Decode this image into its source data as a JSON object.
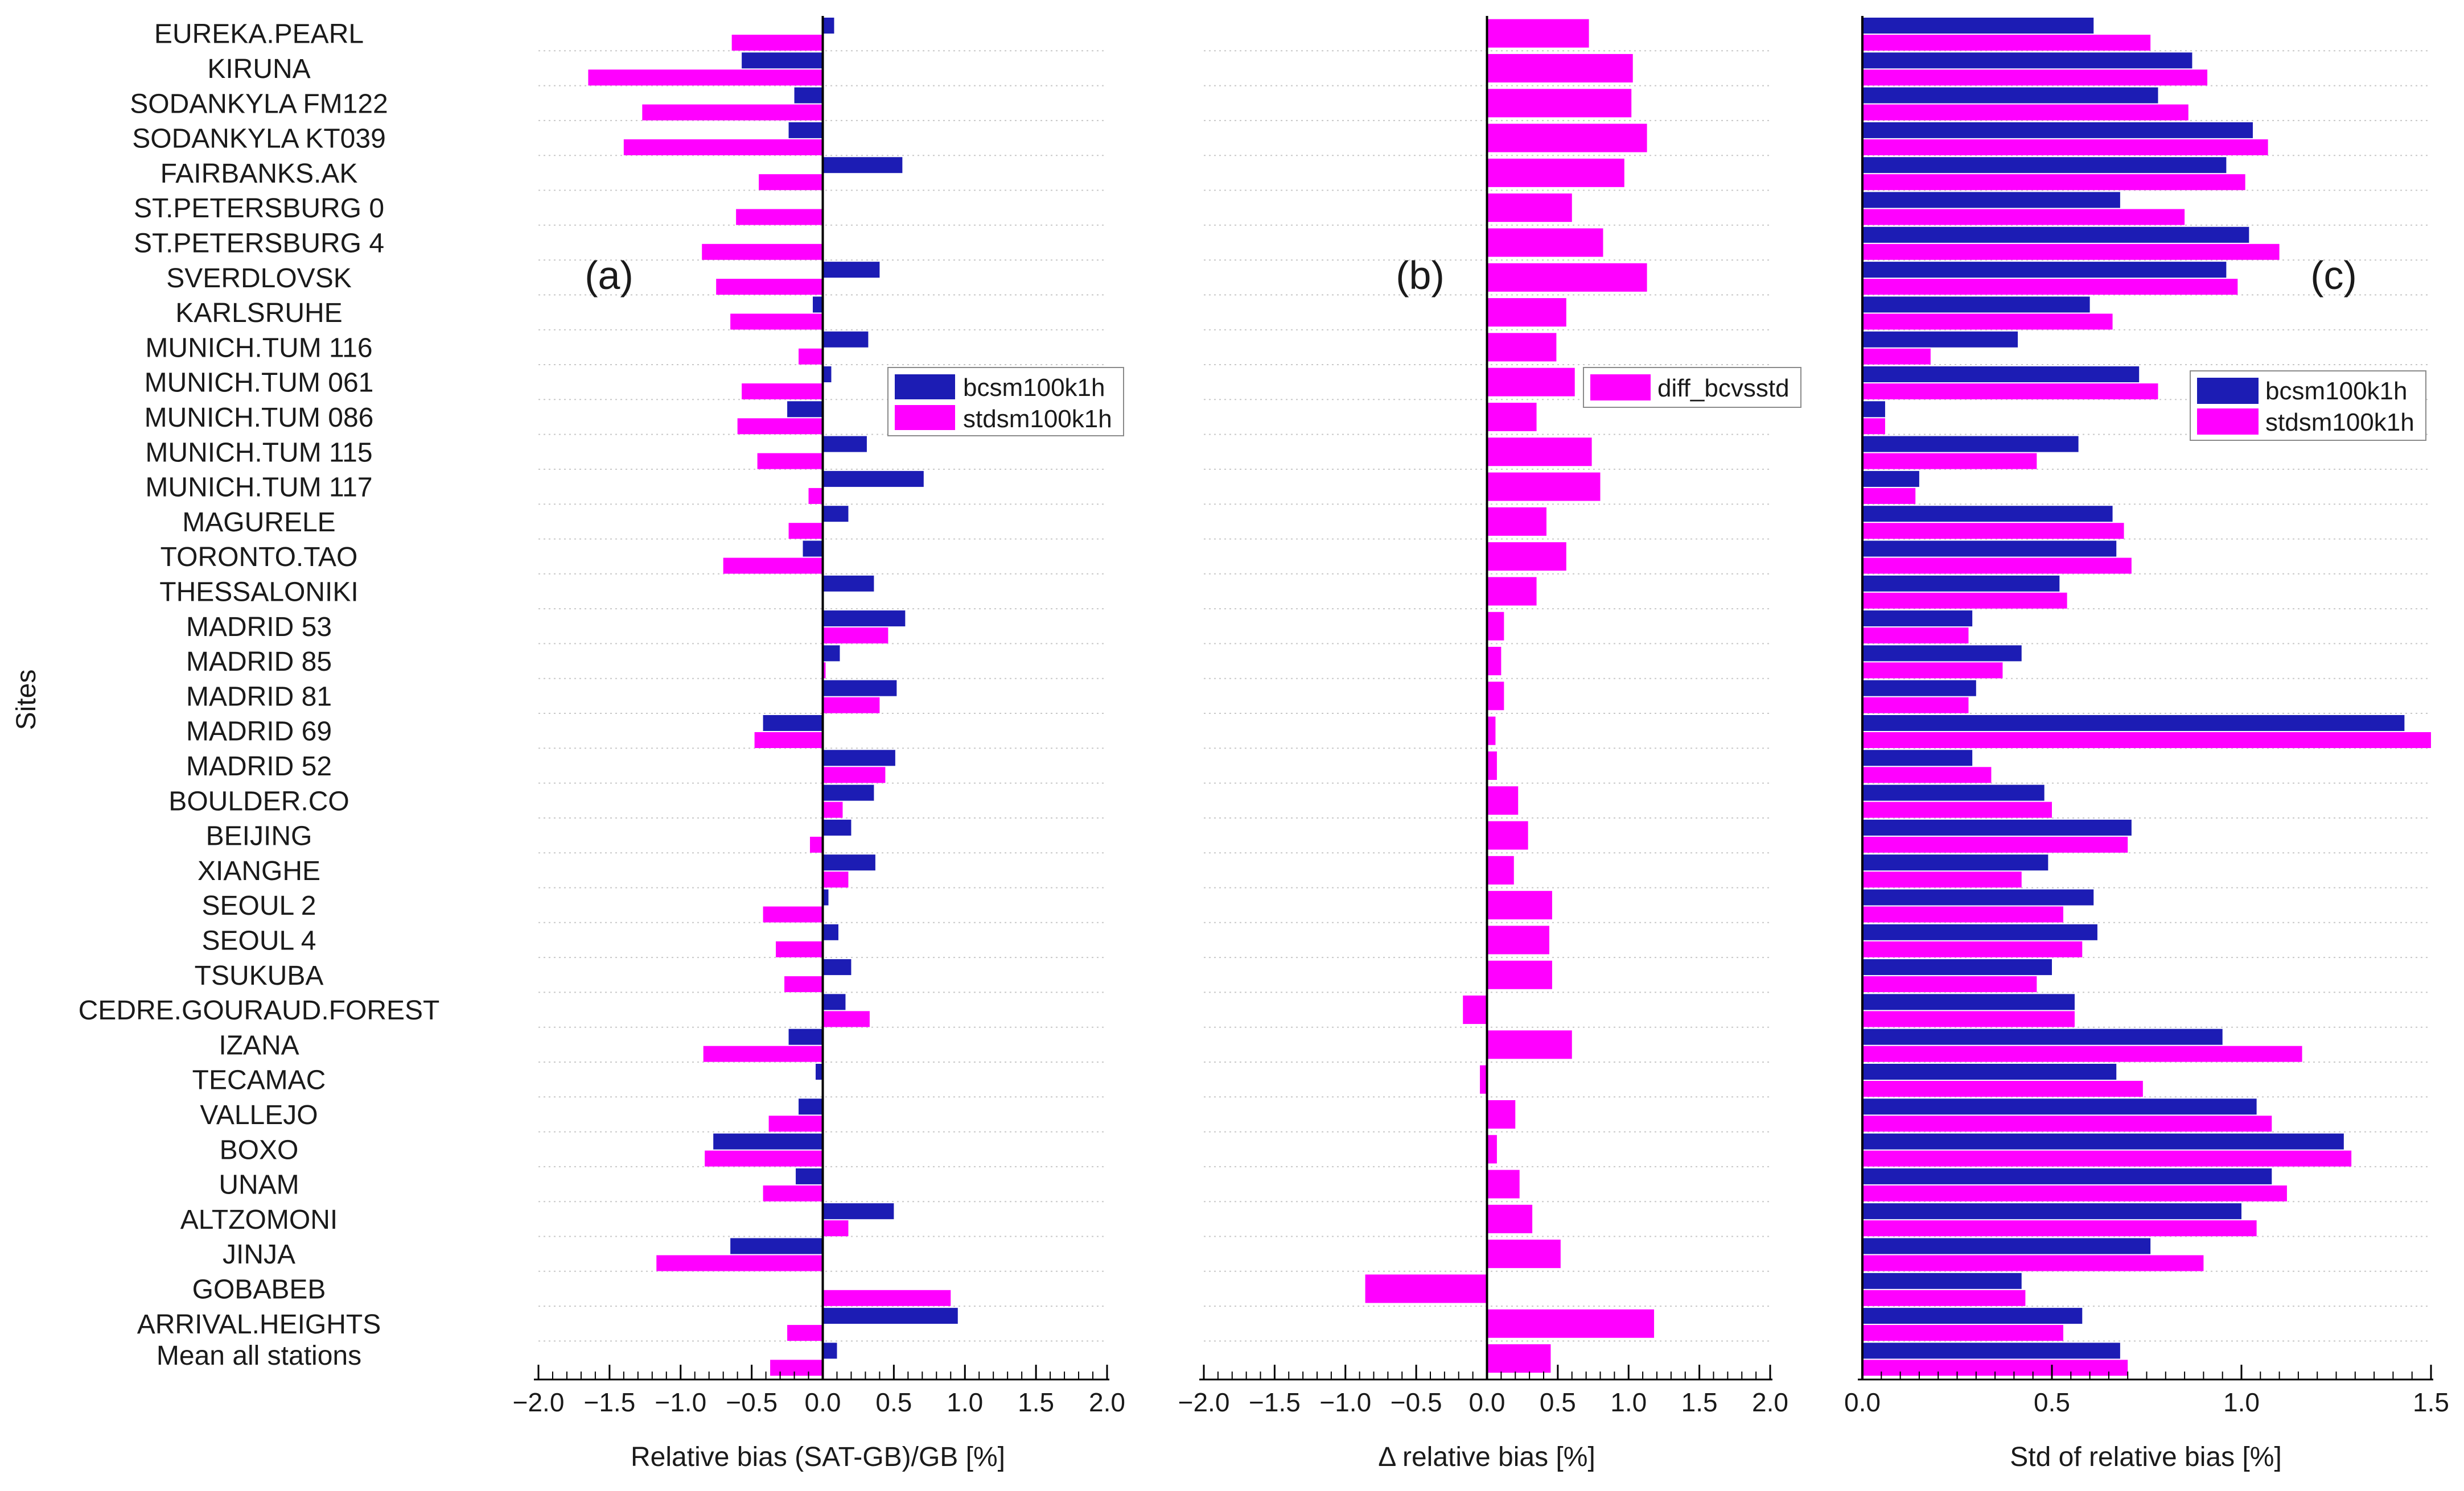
{
  "chart_data": [
    {
      "id": "a",
      "type": "bar",
      "orientation": "horizontal",
      "panel_label": "(a)",
      "xlabel": "Relative bias (SAT-GB)/GB [%]",
      "ylabel": "Sites",
      "xlim": [
        -2.0,
        2.0
      ],
      "xticks": [
        -2.0,
        -1.5,
        -1.0,
        -0.5,
        0.0,
        0.5,
        1.0,
        1.5,
        2.0
      ],
      "xtick_labels": [
        "−2.0",
        "−1.5",
        "−1.0",
        "−0.5",
        "0.0",
        "0.5",
        "1.0",
        "1.5",
        "2.0"
      ],
      "legend_position": "upper-right",
      "series": [
        {
          "name": "bcsm100k1h",
          "color": "#1c1cb4",
          "values": [
            0.08,
            -0.57,
            -0.2,
            -0.24,
            0.56,
            0.0,
            0.0,
            0.4,
            -0.07,
            0.32,
            0.06,
            -0.25,
            0.31,
            0.71,
            0.18,
            -0.14,
            0.36,
            0.58,
            0.12,
            0.52,
            -0.42,
            0.51,
            0.36,
            0.2,
            0.37,
            0.04,
            0.11,
            0.2,
            0.16,
            -0.24,
            -0.05,
            -0.17,
            -0.77,
            -0.19,
            0.5,
            -0.65,
            0.0,
            0.95,
            0.1
          ]
        },
        {
          "name": "stdsm100k1h",
          "color": "#ff00ff",
          "values": [
            -0.64,
            -1.65,
            -1.27,
            -1.4,
            -0.45,
            -0.61,
            -0.85,
            -0.75,
            -0.65,
            -0.17,
            -0.57,
            -0.6,
            -0.46,
            -0.1,
            -0.24,
            -0.7,
            0.0,
            0.46,
            0.02,
            0.4,
            -0.48,
            0.44,
            0.14,
            -0.09,
            0.18,
            -0.42,
            -0.33,
            -0.27,
            0.33,
            -0.84,
            0.0,
            -0.38,
            -0.83,
            -0.42,
            0.18,
            -1.17,
            0.9,
            -0.25,
            -0.37
          ]
        }
      ]
    },
    {
      "id": "b",
      "type": "bar",
      "orientation": "horizontal",
      "panel_label": "(b)",
      "xlabel": "Δ relative bias [%]",
      "xlim": [
        -2.0,
        2.0
      ],
      "xticks": [
        -2.0,
        -1.5,
        -1.0,
        -0.5,
        0.0,
        0.5,
        1.0,
        1.5,
        2.0
      ],
      "xtick_labels": [
        "−2.0",
        "−1.5",
        "−1.0",
        "−0.5",
        "0.0",
        "0.5",
        "1.0",
        "1.5",
        "2.0"
      ],
      "legend_position": "upper-right",
      "series": [
        {
          "name": "diff_bcvsstd",
          "color": "#ff00ff",
          "values": [
            0.72,
            1.03,
            1.02,
            1.13,
            0.97,
            0.6,
            0.82,
            1.13,
            0.56,
            0.49,
            0.62,
            0.35,
            0.74,
            0.8,
            0.42,
            0.56,
            0.35,
            0.12,
            0.1,
            0.12,
            0.06,
            0.07,
            0.22,
            0.29,
            0.19,
            0.46,
            0.44,
            0.46,
            -0.17,
            0.6,
            -0.05,
            0.2,
            0.07,
            0.23,
            0.32,
            0.52,
            -0.86,
            1.18,
            0.45
          ]
        }
      ]
    },
    {
      "id": "c",
      "type": "bar",
      "orientation": "horizontal",
      "panel_label": "(c)",
      "xlabel": "Std of relative bias [%]",
      "xlim": [
        0.0,
        1.5
      ],
      "xticks": [
        0.0,
        0.5,
        1.0,
        1.5
      ],
      "xtick_labels": [
        "0.0",
        "0.5",
        "1.0",
        "1.5"
      ],
      "legend_position": "upper-right",
      "series": [
        {
          "name": "bcsm100k1h",
          "color": "#1c1cb4",
          "values": [
            0.61,
            0.87,
            0.78,
            1.03,
            0.96,
            0.68,
            1.02,
            0.96,
            0.6,
            0.41,
            0.73,
            0.06,
            0.57,
            0.15,
            0.66,
            0.67,
            0.52,
            0.29,
            0.42,
            0.3,
            1.43,
            0.29,
            0.48,
            0.71,
            0.49,
            0.61,
            0.62,
            0.5,
            0.56,
            0.95,
            0.67,
            1.04,
            1.27,
            1.08,
            1.0,
            0.76,
            0.42,
            0.58,
            0.68
          ]
        },
        {
          "name": "stdsm100k1h",
          "color": "#ff00ff",
          "values": [
            0.76,
            0.91,
            0.86,
            1.07,
            1.01,
            0.85,
            1.1,
            0.99,
            0.66,
            0.18,
            0.78,
            0.06,
            0.46,
            0.14,
            0.69,
            0.71,
            0.54,
            0.28,
            0.37,
            0.28,
            1.5,
            0.34,
            0.5,
            0.7,
            0.42,
            0.53,
            0.58,
            0.46,
            0.56,
            1.16,
            0.74,
            1.08,
            1.29,
            1.12,
            1.04,
            0.9,
            0.43,
            0.53,
            0.7
          ]
        }
      ]
    }
  ],
  "sites": [
    "EUREKA.PEARL",
    "KIRUNA",
    "SODANKYLA FM122",
    "SODANKYLA KT039",
    "FAIRBANKS.AK",
    "ST.PETERSBURG 0",
    "ST.PETERSBURG 4",
    "SVERDLOVSK",
    "KARLSRUHE",
    "MUNICH.TUM 116",
    "MUNICH.TUM 061",
    "MUNICH.TUM 086",
    "MUNICH.TUM 115",
    "MUNICH.TUM 117",
    "MAGURELE",
    "TORONTO.TAO",
    "THESSALONIKI",
    "MADRID 53",
    "MADRID 85",
    "MADRID 81",
    "MADRID 69",
    "MADRID 52",
    "BOULDER.CO",
    "BEIJING",
    "XIANGHE",
    "SEOUL 2",
    "SEOUL 4",
    "TSUKUBA",
    "CEDRE.GOURAUD.FOREST",
    "IZANA",
    "TECAMAC",
    "VALLEJO",
    "BOXO",
    "UNAM",
    "ALTZOMONI",
    "JINJA",
    "GOBABEB",
    "ARRIVAL.HEIGHTS",
    "Mean all stations"
  ],
  "y_axis_title": "Sites"
}
